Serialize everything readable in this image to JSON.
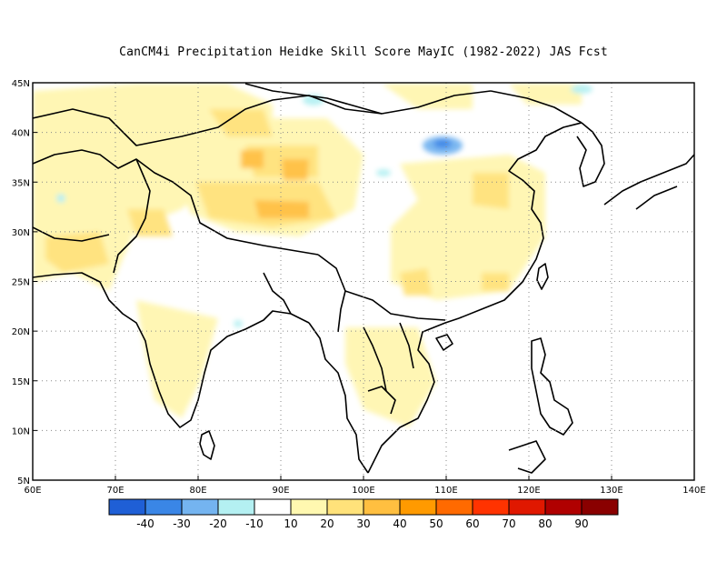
{
  "title": "CanCM4i  Precipitation Heidke Skill Score MayIC (1982-2022) JAS Fcst",
  "map": {
    "lon_range": [
      60,
      140
    ],
    "lat_range": [
      5,
      45
    ],
    "x_ticks": [
      {
        "value": 60,
        "label": "60E"
      },
      {
        "value": 70,
        "label": "70E"
      },
      {
        "value": 80,
        "label": "80E"
      },
      {
        "value": 90,
        "label": "90E"
      },
      {
        "value": 100,
        "label": "100E"
      },
      {
        "value": 110,
        "label": "110E"
      },
      {
        "value": 120,
        "label": "120E"
      },
      {
        "value": 130,
        "label": "130E"
      },
      {
        "value": 140,
        "label": "140E"
      }
    ],
    "y_ticks": [
      {
        "value": 5,
        "label": "5N"
      },
      {
        "value": 10,
        "label": "10N"
      },
      {
        "value": 15,
        "label": "15N"
      },
      {
        "value": 20,
        "label": "20N"
      },
      {
        "value": 25,
        "label": "25N"
      },
      {
        "value": 30,
        "label": "30N"
      },
      {
        "value": 35,
        "label": "35N"
      },
      {
        "value": 40,
        "label": "40N"
      },
      {
        "value": 45,
        "label": "45N"
      }
    ],
    "grid": "dotted"
  },
  "colorbar": {
    "colors": [
      "#1f5fd6",
      "#3a86e6",
      "#74b4f0",
      "#b4f0f2",
      "#ffffff",
      "#fff8b0",
      "#ffe27a",
      "#ffbf40",
      "#ff9a00",
      "#ff6a00",
      "#ff3300",
      "#e01800",
      "#b00000",
      "#8a0000"
    ],
    "labels": [
      "-40",
      "-30",
      "-20",
      "-10",
      "10",
      "20",
      "30",
      "40",
      "50",
      "60",
      "70",
      "80",
      "90"
    ]
  },
  "chart_data": {
    "type": "heatmap",
    "title": "CanCM4i  Precipitation Heidke Skill Score MayIC (1982-2022) JAS Fcst",
    "xlabel": "",
    "ylabel": "",
    "xlim": [
      60,
      140
    ],
    "ylim": [
      5,
      45
    ],
    "levels": [
      -40,
      -30,
      -20,
      -10,
      10,
      20,
      30,
      40,
      50,
      60,
      70,
      80,
      90
    ],
    "regions": [
      {
        "name": "",
        "lon": [
          61,
          70
        ],
        "lat": [
          36,
          42
        ],
        "value": 15
      },
      {
        "name": "",
        "lon": [
          69,
          77
        ],
        "lat": [
          29,
          36
        ],
        "value": 18
      },
      {
        "name": "",
        "lon": [
          62,
          70
        ],
        "lat": [
          26,
          31
        ],
        "value": 22
      },
      {
        "name": "",
        "lon": [
          80,
          97
        ],
        "lat": [
          29,
          40
        ],
        "value": 25
      },
      {
        "name": "",
        "lon": [
          87,
          90
        ],
        "lat": [
          31,
          33
        ],
        "value": 40
      },
      {
        "name": "",
        "lon": [
          103,
          116
        ],
        "lat": [
          25,
          37
        ],
        "value": 15
      },
      {
        "name": "",
        "lon": [
          76,
          82
        ],
        "lat": [
          12,
          19
        ],
        "value": 15
      },
      {
        "name": "",
        "lon": [
          107,
          109
        ],
        "lat": [
          37,
          39
        ],
        "value": -30
      },
      {
        "name": "",
        "lon": [
          91,
          94
        ],
        "lat": [
          41,
          43
        ],
        "value": -15
      }
    ]
  }
}
